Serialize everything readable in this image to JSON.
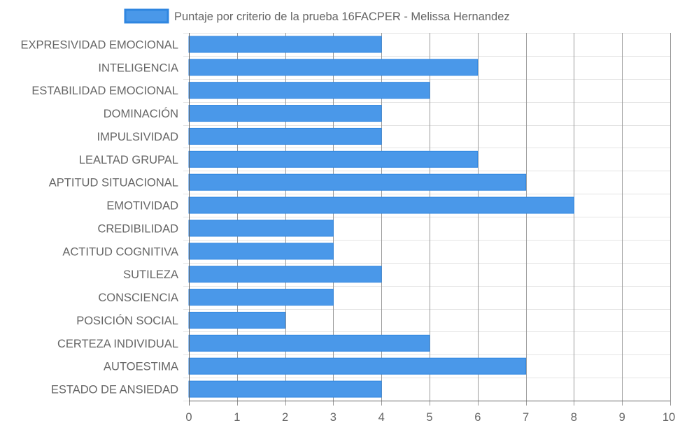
{
  "chart_data": {
    "type": "bar",
    "orientation": "horizontal",
    "categories": [
      "EXPRESIVIDAD EMOCIONAL",
      "INTELIGENCIA",
      "ESTABILIDAD EMOCIONAL",
      "DOMINACIÓN",
      "IMPULSIVIDAD",
      "LEALTAD GRUPAL",
      "APTITUD SITUACIONAL",
      "EMOTIVIDAD",
      "CREDIBILIDAD",
      "ACTITUD COGNITIVA",
      "SUTILEZA",
      "CONSCIENCIA",
      "POSICIÓN SOCIAL",
      "CERTEZA INDIVIDUAL",
      "AUTOESTIMA",
      "ESTADO DE ANSIEDAD"
    ],
    "series": [
      {
        "name": "Puntaje por criterio de la prueba 16FACPER - Melissa Hernandez",
        "values": [
          4,
          6,
          5,
          4,
          4,
          6,
          7,
          8,
          3,
          3,
          4,
          3,
          2,
          5,
          7,
          4
        ]
      }
    ],
    "xlim": [
      0,
      10
    ],
    "x_ticks": [
      0,
      1,
      2,
      3,
      4,
      5,
      6,
      7,
      8,
      9,
      10
    ],
    "grid": true,
    "legend_position": "top",
    "colors": {
      "bar_fill": "#4a98e9",
      "bar_border": "#2f86e0",
      "grid_major": "#9a9a9a",
      "grid_minor": "#e4e4e4",
      "text": "#666666"
    }
  }
}
